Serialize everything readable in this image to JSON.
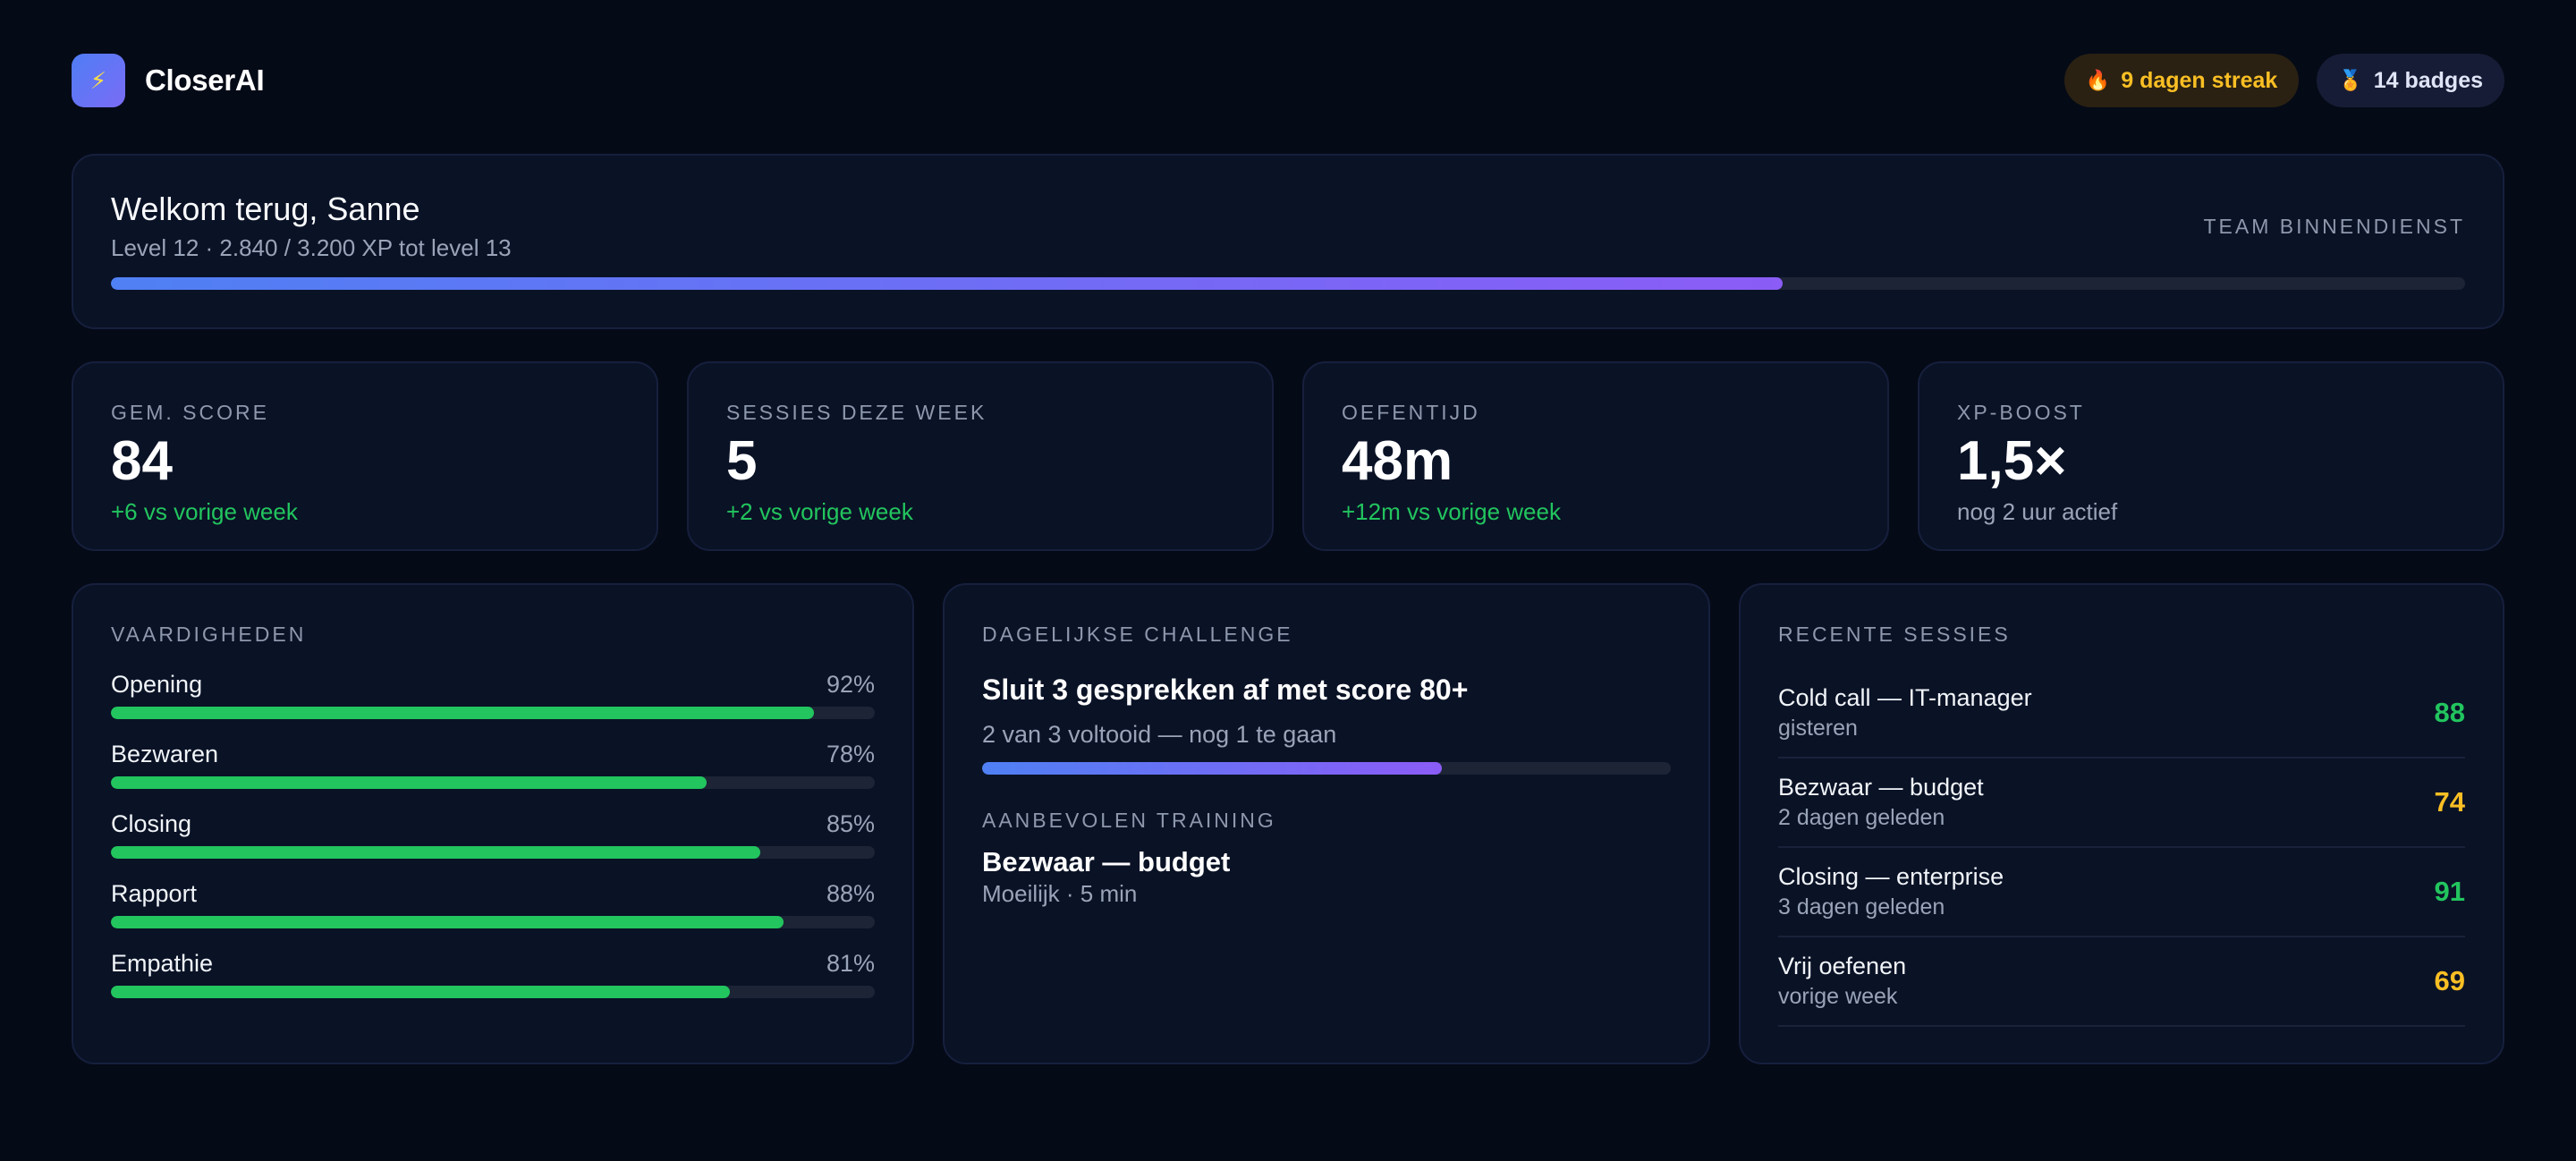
{
  "header": {
    "logo_icon": "lightning-bolt",
    "app_name": "CloserAI",
    "streak": {
      "icon": "fire-icon",
      "label": "9 dagen streak"
    },
    "badges": {
      "icon": "medal-icon",
      "label": "14 badges"
    }
  },
  "welcome": {
    "title": "Welkom terug, Sanne",
    "subtitle": "Level 12 · 2.840 / 3.200 XP tot level 13",
    "team": "TEAM BINNENDIENST",
    "xp_progress": 0.71
  },
  "stats": [
    {
      "label": "GEM. SCORE",
      "value": "84",
      "delta": "+6 vs vorige week",
      "delta_color": "green"
    },
    {
      "label": "SESSIES DEZE WEEK",
      "value": "5",
      "delta": "+2 vs vorige week",
      "delta_color": "green"
    },
    {
      "label": "OEFENTIJD",
      "value": "48m",
      "delta": "+12m vs vorige week",
      "delta_color": "green"
    },
    {
      "label": "XP-BOOST",
      "value": "1,5×",
      "delta": "nog 2 uur actief",
      "delta_color": "muted"
    }
  ],
  "skills": {
    "label": "VAARDIGHEDEN",
    "items": [
      {
        "name": "Opening",
        "pct": "92%",
        "value": 92
      },
      {
        "name": "Bezwaren",
        "pct": "78%",
        "value": 78
      },
      {
        "name": "Closing",
        "pct": "85%",
        "value": 85
      },
      {
        "name": "Rapport",
        "pct": "88%",
        "value": 88
      },
      {
        "name": "Empathie",
        "pct": "81%",
        "value": 81
      }
    ]
  },
  "challenge": {
    "label": "DAGELIJKSE CHALLENGE",
    "title": "Sluit 3 gesprekken af met score 80+",
    "progress_text": "2 van 3 voltooid — nog 1 te gaan",
    "progress": 0.667,
    "recommended_label": "AANBEVOLEN TRAINING",
    "recommended_title": "Bezwaar — budget",
    "recommended_meta": "Moeilijk · 5 min"
  },
  "recent": {
    "label": "RECENTE SESSIES",
    "sessions": [
      {
        "title": "Cold call — IT-manager",
        "when": "gisteren",
        "score": "88",
        "color": "#22c55e"
      },
      {
        "title": "Bezwaar — budget",
        "when": "2 dagen geleden",
        "score": "74",
        "color": "#fbbf24"
      },
      {
        "title": "Closing — enterprise",
        "when": "3 dagen geleden",
        "score": "91",
        "color": "#22c55e"
      },
      {
        "title": "Vrij oefenen",
        "when": "vorige week",
        "score": "69",
        "color": "#fbbf24"
      }
    ]
  },
  "colors": {
    "background": "#050a17",
    "card": "#0a1226",
    "accent_start": "#4f80f4",
    "accent_end": "#8b5cf6",
    "success": "#22c55e",
    "warning": "#fbbf24"
  }
}
